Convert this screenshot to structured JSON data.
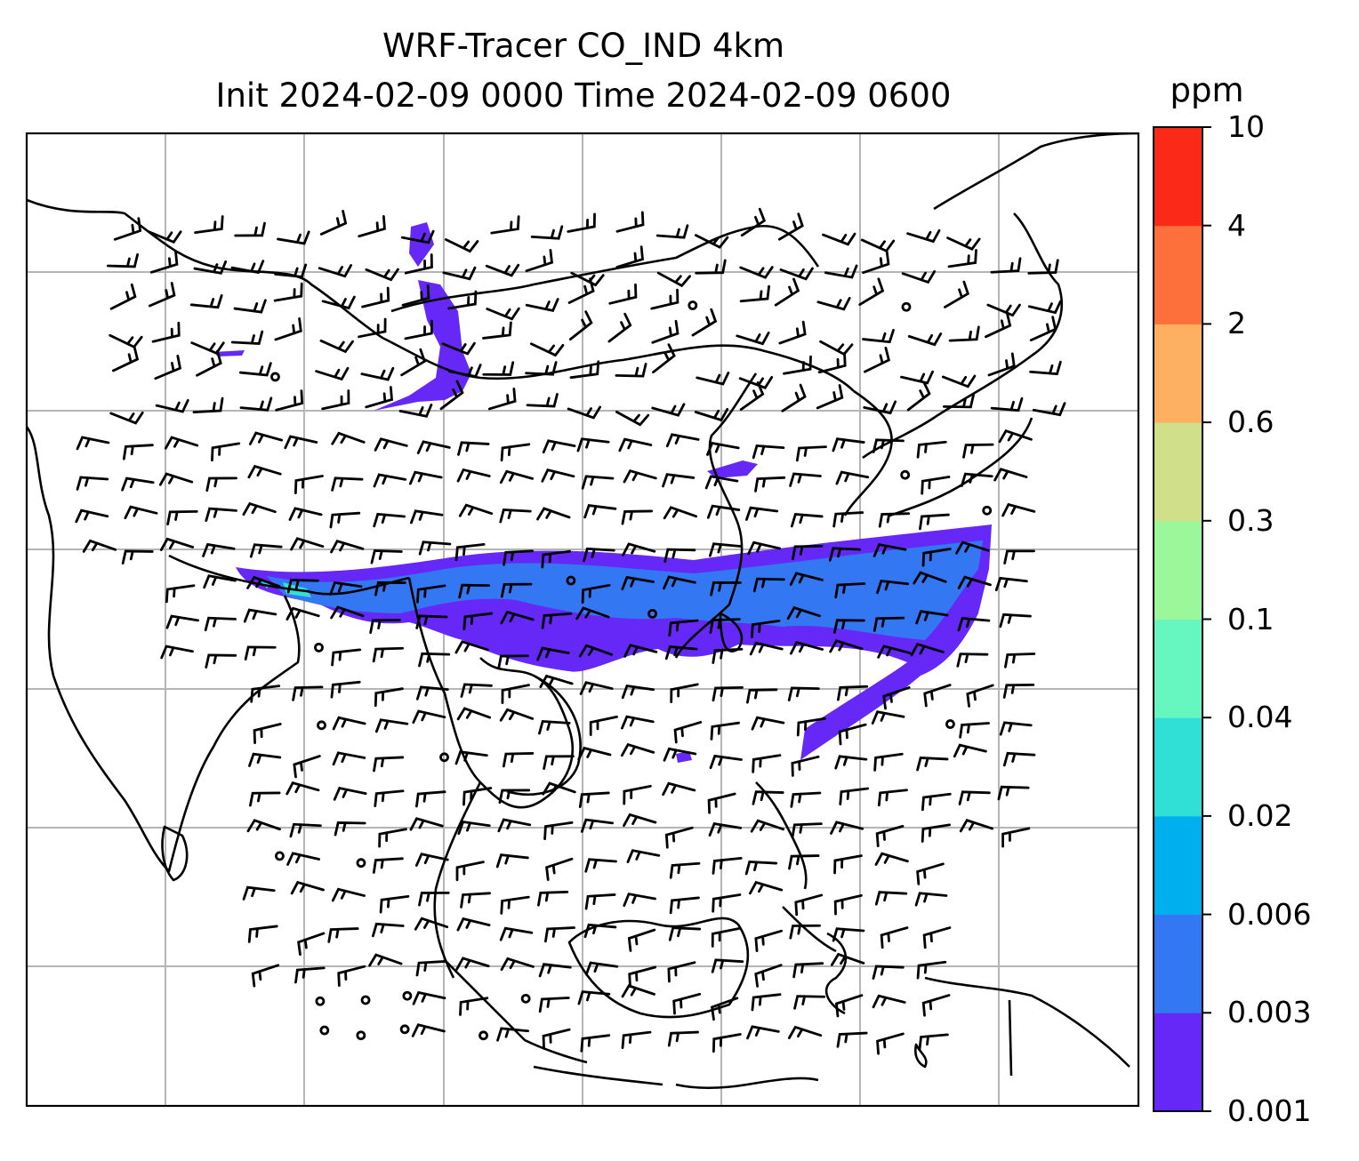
{
  "title": {
    "line1": "WRF-Tracer CO_IND 4km",
    "line2": "Init 2024-02-09 0000 Time 2024-02-09 0600"
  },
  "colorbar": {
    "unit": "ppm",
    "levels": [
      "0.001",
      "0.003",
      "0.006",
      "0.02",
      "0.04",
      "0.1",
      "0.3",
      "0.6",
      "2",
      "4",
      "10"
    ],
    "colors": [
      "#6528f7",
      "#3377f2",
      "#00b0ee",
      "#30dfd5",
      "#66f7c0",
      "#9cf79a",
      "#d0e08a",
      "#fdb060",
      "#fd6f3b",
      "#fb2a18"
    ]
  },
  "map": {
    "features": [
      "coastlines",
      "country borders",
      "lat-lon gridlines",
      "wind barbs"
    ],
    "field": "CO_IND tracer concentration",
    "plume_colors": [
      "#6528f7",
      "#3377f2",
      "#30dfd5"
    ]
  }
}
